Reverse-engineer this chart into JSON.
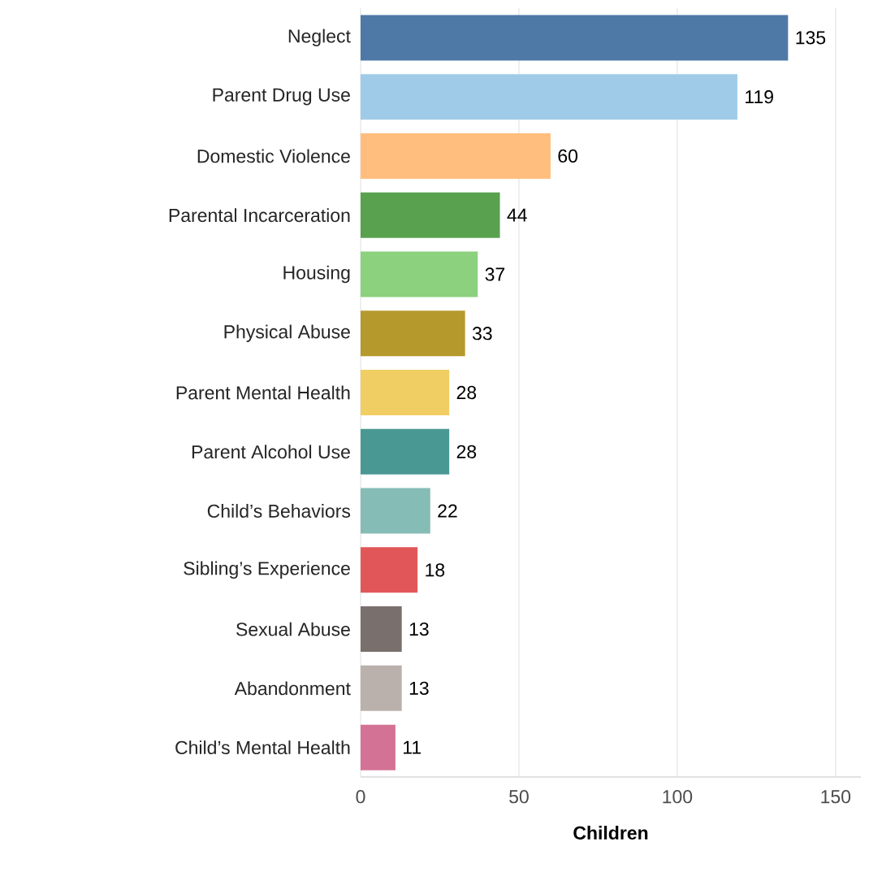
{
  "chart_data": {
    "type": "bar",
    "orientation": "horizontal",
    "xlabel": "Children",
    "categories": [
      "Neglect",
      "Parent Drug Use",
      "Domestic Violence",
      "Parental Incarceration",
      "Housing",
      "Physical Abuse",
      "Parent Mental Health",
      "Parent Alcohol Use",
      "Child’s Behaviors",
      "Sibling’s Experience",
      "Sexual Abuse",
      "Abandonment",
      "Child’s Mental Health"
    ],
    "values": [
      135,
      119,
      60,
      44,
      37,
      33,
      28,
      28,
      22,
      18,
      13,
      13,
      11
    ],
    "colors": [
      "#4e79a7",
      "#a0cbe8",
      "#ffbe7d",
      "#59a14f",
      "#8cd17d",
      "#b6992d",
      "#f1ce63",
      "#499894",
      "#86bcb6",
      "#e15759",
      "#79706e",
      "#bab0ac",
      "#d37295"
    ],
    "xlim": [
      0,
      158
    ],
    "xticks": [
      0,
      50,
      100,
      150
    ],
    "grid": "x",
    "data_labels": true
  }
}
